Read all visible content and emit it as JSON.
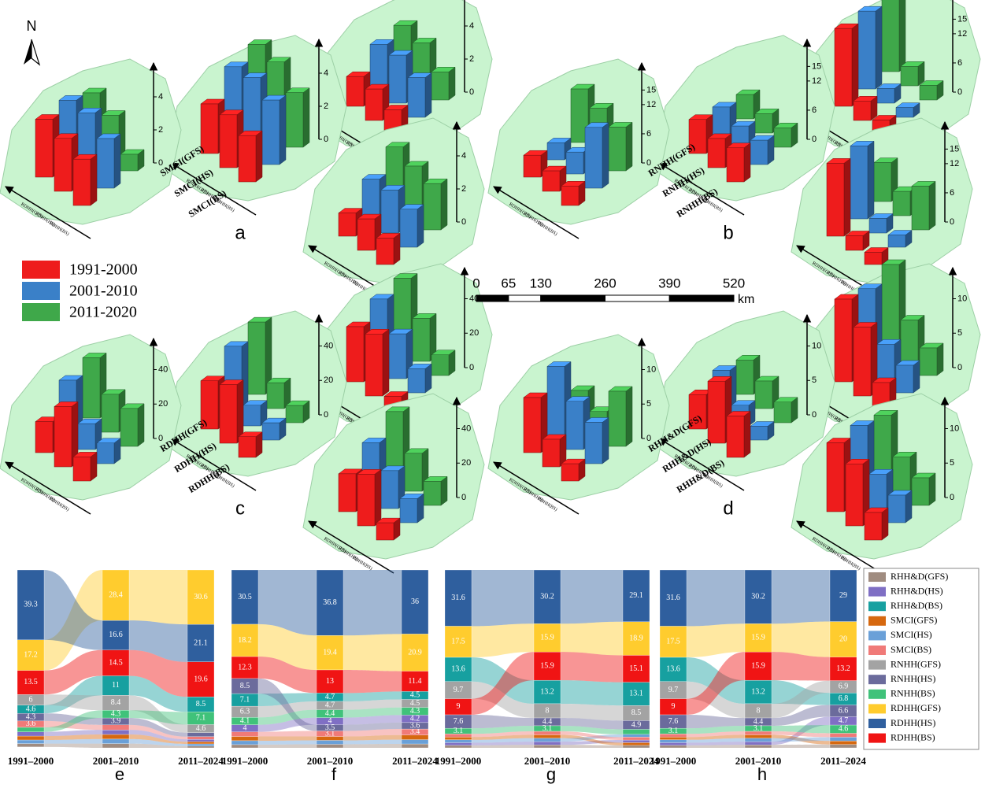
{
  "north": "N",
  "scale_bar": {
    "ticks": [
      0,
      65,
      130,
      260,
      390,
      520
    ],
    "unit": "km"
  },
  "sankey_legend": [
    {
      "name": "RHH&D(GFS)",
      "color": "#a08c80"
    },
    {
      "name": "RHH&D(HS)",
      "color": "#7f6fc4"
    },
    {
      "name": "RHH&D(BS)",
      "color": "#17a0a0"
    },
    {
      "name": "SMCI(GFS)",
      "color": "#d6680f"
    },
    {
      "name": "SMCI(HS)",
      "color": "#6aa0d8"
    },
    {
      "name": "SMCI(BS)",
      "color": "#f07a78"
    },
    {
      "name": "RNHH(GFS)",
      "color": "#a3a3a3"
    },
    {
      "name": "RNHH(HS)",
      "color": "#6b6b9c"
    },
    {
      "name": "RNHH(BS)",
      "color": "#40c27a"
    },
    {
      "name": "RDHH(GFS)",
      "color": "#ffcc2e"
    },
    {
      "name": "RDHH(HS)",
      "color": "#2f5f9e"
    },
    {
      "name": "RDHH(BS)",
      "color": "#f01414"
    }
  ],
  "chart_data": [
    {
      "type": "bar3d",
      "series": [
        {
          "name": "1991-2000",
          "color": "#ee1c1c"
        },
        {
          "name": "2001-2010",
          "color": "#3a80c8"
        },
        {
          "name": "2011-2020",
          "color": "#3fa84a"
        }
      ],
      "panels": [
        {
          "label": "a",
          "axis_labels": [
            "SMCI(GFS)",
            "SMCI(HS)",
            "SMCI(BS)"
          ],
          "row_labels": [
            "RDHH(GFS)",
            "RDHH(HS)",
            "RDHH(BS)"
          ],
          "zlim": [
            0,
            5
          ],
          "zticks": [
            0,
            2,
            4
          ],
          "subplots": [
            {
              "values": [
                [
                  3.5,
                  3.2,
                  2.8
                ],
                [
                  3.6,
                  3.7,
                  3.0
                ],
                [
                  3.0,
                  2.5,
                  1.0
                ]
              ]
            },
            {
              "values": [
                [
                  3.0,
                  3.2,
                  2.8
                ],
                [
                  4.2,
                  4.4,
                  3.9
                ],
                [
                  4.5,
                  4.3,
                  3.3
                ]
              ]
            },
            {
              "values": [
                [
                  1.8,
                  1.9,
                  1.5
                ],
                [
                  2.7,
                  2.9,
                  2.4
                ],
                [
                  2.8,
                  2.6,
                  1.7
                ]
              ]
            },
            {
              "values": [
                [
                  1.4,
                  1.9,
                  1.6
                ],
                [
                  2.4,
                  2.6,
                  2.3
                ],
                [
                  3.3,
                  3.0,
                  2.8
                ]
              ]
            }
          ]
        },
        {
          "label": "b",
          "axis_labels": [
            "RNHH(GFS)",
            "RNHH(HS)",
            "RNHH(BS)"
          ],
          "row_labels": [
            "RDHH(GFS)",
            "RDHH(HS)",
            "RDHH(BS)"
          ],
          "zlim": [
            0,
            17
          ],
          "zticks": [
            0,
            6,
            12,
            15
          ],
          "subplots": [
            {
              "values": [
                [
                  4.5,
                  4.2,
                  4.0
                ],
                [
                  3.5,
                  4.5,
                  12.5
                ],
                [
                  11,
                  10,
                  9
                ]
              ]
            },
            {
              "values": [
                [
                  7,
                  6,
                  7
                ],
                [
                  6,
                  5,
                  5
                ],
                [
                  5,
                  4,
                  4
                ]
              ]
            },
            {
              "values": [
                [
                  16,
                  4,
                  3
                ],
                [
                  16,
                  3,
                  2
                ],
                [
                  16,
                  4,
                  3
                ]
              ]
            },
            {
              "values": [
                [
                  15,
                  3,
                  2.5
                ],
                [
                  15,
                  3,
                  2.5
                ],
                [
                  8,
                  5,
                  9
                ]
              ]
            }
          ]
        },
        {
          "label": "c",
          "axis_labels": [
            "RDHH(GFS)",
            "RDHH(HS)",
            "RDHH(BS)"
          ],
          "row_labels": [
            "RDHH(GFS)",
            "RDHH(HS)",
            "RDHH(BS)"
          ],
          "zlim": [
            0,
            48
          ],
          "zticks": [
            0,
            20,
            40
          ],
          "subplots": [
            {
              "values": [
                [
                  18,
                  35,
                  14
                ],
                [
                  32,
                  15,
                  12
                ],
                [
                  35,
                  22,
                  22
                ]
              ]
            },
            {
              "values": [
                [
                  28,
                  34,
                  12
                ],
                [
                  38,
                  12,
                  10
                ],
                [
                  42,
                  15,
                  10
                ]
              ]
            },
            {
              "values": [
                [
                  32,
                  36,
                  8
                ],
                [
                  38,
                  26,
                  14
                ],
                [
                  40,
                  25,
                  12
                ]
              ]
            },
            {
              "values": [
                [
                  22,
                  30,
                  10
                ],
                [
                  30,
                  22,
                  14
                ],
                [
                  38,
                  22,
                  14
                ]
              ]
            }
          ]
        },
        {
          "label": "d",
          "axis_labels": [
            "RHH&D(GFS)",
            "RHH&D(HS)",
            "RHH&D(BS)"
          ],
          "row_labels": [
            "RDHH(GFS)",
            "RDHH(HS)",
            "RDHH(BS)"
          ],
          "zlim": [
            0,
            12
          ],
          "zticks": [
            0,
            5,
            10
          ],
          "subplots": [
            {
              "values": [
                [
                  8,
                  4,
                  2.5
                ],
                [
                  10,
                  7,
                  6
                ],
                [
                  4,
                  3,
                  8
                ]
              ]
            },
            {
              "values": [
                [
                  5,
                  9,
                  6
                ],
                [
                  6,
                  3,
                  2
                ],
                [
                  5,
                  4,
                  3
                ]
              ]
            },
            {
              "values": [
                [
                  12,
                  10,
                  4
                ],
                [
                  11,
                  5,
                  4
                ],
                [
                  12,
                  6,
                  4
                ]
              ]
            },
            {
              "values": [
                [
                  10,
                  9,
                  4
                ],
                [
                  10,
                  5,
                  4
                ],
                [
                  9,
                  5,
                  4
                ]
              ]
            }
          ]
        }
      ]
    },
    {
      "type": "sankey",
      "label": "e",
      "columns": [
        "1991–2000",
        "2001–2010",
        "2011–2024"
      ],
      "values": [
        [
          1.9,
          2.4,
          1.0
        ],
        [
          2.4,
          2.6,
          1.4
        ],
        [
          4.6,
          11,
          8.5
        ],
        [
          2.2,
          2.6,
          1.2
        ],
        [
          2.0,
          2.5,
          1.2
        ],
        [
          3.6,
          2.8,
          1.5
        ],
        [
          6,
          8.4,
          4.6
        ],
        [
          4.3,
          3.9,
          2.2
        ],
        [
          2.5,
          4.3,
          7.1
        ],
        [
          17.2,
          28.4,
          30.6
        ],
        [
          39.3,
          16.6,
          21.1
        ],
        [
          13.5,
          14.5,
          19.6
        ]
      ]
    },
    {
      "type": "sankey",
      "label": "f",
      "columns": [
        "1991–2000",
        "2001–2010",
        "2011–2024"
      ],
      "values": [
        [
          1.8,
          2.0,
          2.2
        ],
        [
          4,
          4,
          4.2
        ],
        [
          7.1,
          4.7,
          4.5
        ],
        [
          2.4,
          2.2,
          2.6
        ],
        [
          2.2,
          2.2,
          2.4
        ],
        [
          2.6,
          3.1,
          3.4
        ],
        [
          6.3,
          4.7,
          4.5
        ],
        [
          8.5,
          3.5,
          3.6
        ],
        [
          4.1,
          4.4,
          4.3
        ],
        [
          18.2,
          19.4,
          20.9
        ],
        [
          30.5,
          36.8,
          36
        ],
        [
          12.3,
          13,
          11.4
        ]
      ]
    },
    {
      "type": "sankey",
      "label": "g",
      "columns": [
        "1991–2000",
        "2001–2010",
        "2011–2024"
      ],
      "values": [
        [
          1.4,
          1.7,
          1.4
        ],
        [
          1.5,
          1.8,
          1.5
        ],
        [
          13.6,
          13.2,
          13.1
        ],
        [
          1.6,
          1.9,
          1.5
        ],
        [
          1.6,
          1.9,
          1.6
        ],
        [
          1.8,
          2.0,
          1.6
        ],
        [
          9.7,
          8,
          8.5
        ],
        [
          7.6,
          4.4,
          4.9
        ],
        [
          3.1,
          3.1,
          2.8
        ],
        [
          17.5,
          15.9,
          18.9
        ],
        [
          31.6,
          30.2,
          29.1
        ],
        [
          9,
          15.9,
          15.1
        ]
      ]
    },
    {
      "type": "sankey",
      "label": "h",
      "columns": [
        "1991–2000",
        "2001–2010",
        "2011–2024"
      ],
      "values": [
        [
          1.4,
          1.7,
          1.9
        ],
        [
          1.5,
          1.8,
          4.7
        ],
        [
          13.6,
          13.2,
          6.8
        ],
        [
          1.6,
          1.9,
          2.0
        ],
        [
          1.6,
          1.9,
          2.1
        ],
        [
          1.8,
          2.0,
          2.2
        ],
        [
          9.7,
          8,
          6.9
        ],
        [
          7.6,
          4.4,
          6.6
        ],
        [
          3.1,
          3.1,
          4.6
        ],
        [
          17.5,
          15.9,
          20
        ],
        [
          31.6,
          30.2,
          29
        ],
        [
          9,
          15.9,
          13.2
        ]
      ]
    }
  ]
}
